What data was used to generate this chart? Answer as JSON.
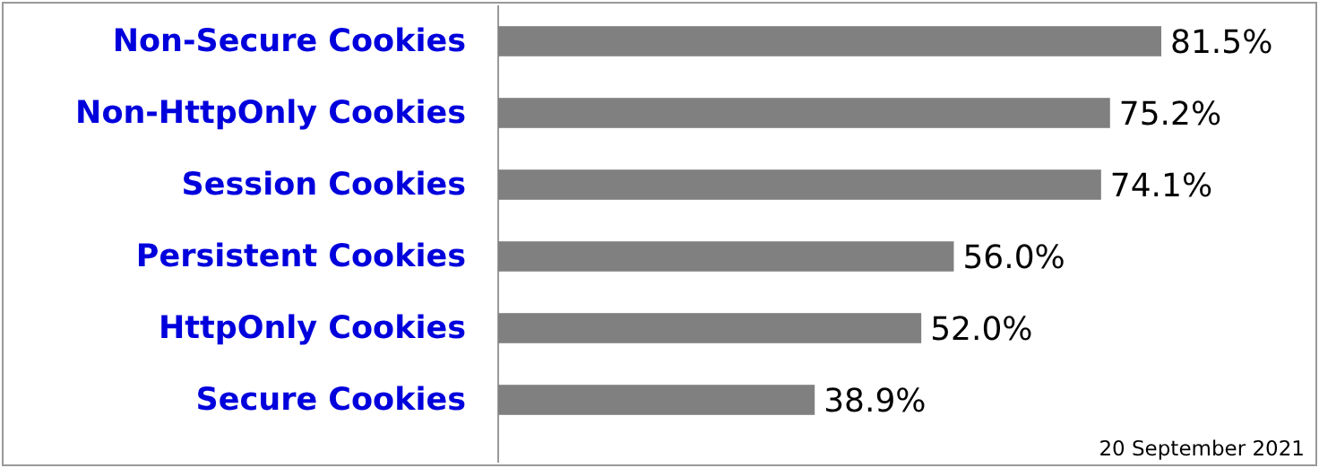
{
  "chart_data": {
    "type": "bar",
    "orientation": "horizontal",
    "categories": [
      "Non-Secure Cookies",
      "Non-HttpOnly Cookies",
      "Session Cookies",
      "Persistent Cookies",
      "HttpOnly Cookies",
      "Secure Cookies"
    ],
    "values": [
      81.5,
      75.2,
      74.1,
      56.0,
      52.0,
      38.9
    ],
    "value_labels": [
      "81.5%",
      "75.2%",
      "74.1%",
      "56.0%",
      "52.0%",
      "38.9%"
    ],
    "color": "#808080",
    "annotations": [
      "20 September 2021"
    ]
  }
}
